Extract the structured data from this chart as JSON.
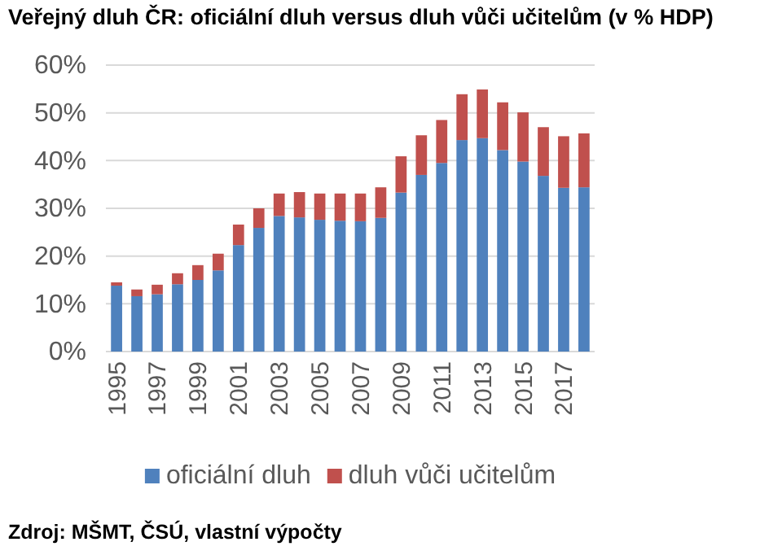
{
  "chart_data": {
    "type": "bar",
    "title": "Veřejný dluh ČR: oficiální dluh versus dluh vůči učitelům (v % HDP)",
    "categories": [
      "1995",
      null,
      "1997",
      null,
      "1999",
      null,
      "2001",
      null,
      "2003",
      null,
      "2005",
      null,
      "2007",
      null,
      "2009",
      null,
      "2011",
      null,
      "2013",
      null,
      "2015",
      null,
      "2017",
      null
    ],
    "series": [
      {
        "name": "oficiální dluh",
        "color": "#4f81bd",
        "values": [
          13.8,
          11.6,
          12.0,
          14.1,
          15.0,
          17.0,
          22.3,
          25.9,
          28.4,
          28.1,
          27.6,
          27.4,
          27.3,
          28.0,
          33.3,
          37.0,
          39.5,
          44.3,
          44.7,
          42.2,
          39.8,
          36.8,
          34.3,
          34.4
        ]
      },
      {
        "name": "dluh vůči učitelům",
        "color": "#c0504d",
        "values": [
          0.7,
          1.4,
          2.0,
          2.3,
          3.1,
          3.5,
          4.3,
          4.1,
          4.7,
          5.3,
          5.5,
          5.7,
          5.8,
          6.4,
          7.6,
          8.3,
          9.0,
          9.6,
          10.2,
          10.0,
          10.3,
          10.2,
          10.8,
          11.3
        ]
      }
    ],
    "stacked": true,
    "ylim": [
      0,
      60
    ],
    "yticks": [
      {
        "value": 0,
        "label": "0%"
      },
      {
        "value": 10,
        "label": "10%"
      },
      {
        "value": 20,
        "label": "20%"
      },
      {
        "value": 30,
        "label": "30%"
      },
      {
        "value": 40,
        "label": "40%"
      },
      {
        "value": 50,
        "label": "50%"
      },
      {
        "value": 60,
        "label": "60%"
      }
    ],
    "grid": "y",
    "legend": "bottom",
    "annotations": [
      "Zdroj: MŠMT, ČSÚ, vlastní výpočty"
    ]
  }
}
